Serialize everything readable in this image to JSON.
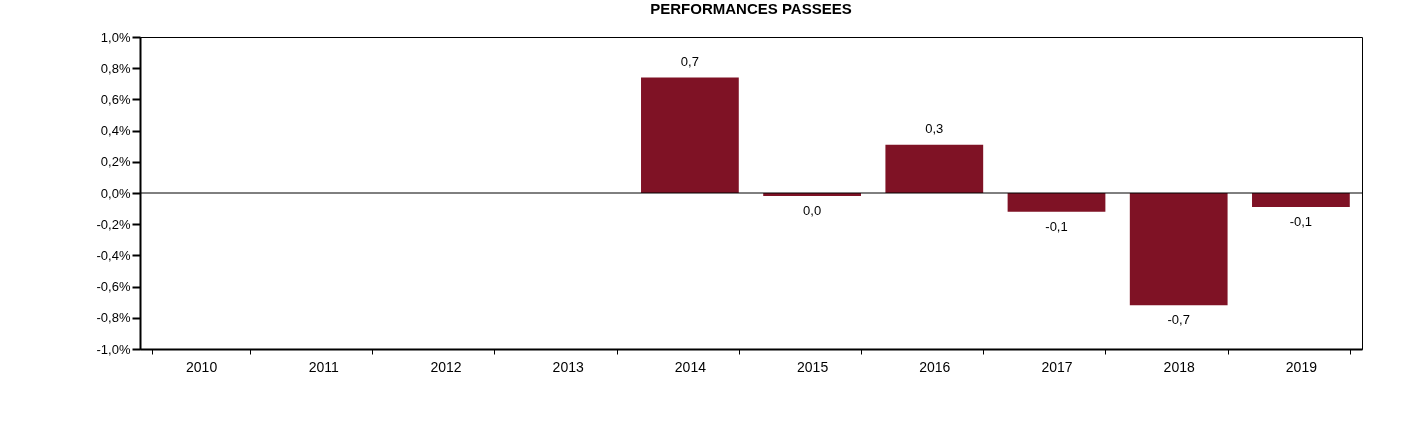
{
  "chart_data": {
    "type": "bar",
    "title": "PERFORMANCES PASSEES",
    "categories": [
      "2010",
      "2011",
      "2012",
      "2013",
      "2014",
      "2015",
      "2016",
      "2017",
      "2018",
      "2019"
    ],
    "values": [
      null,
      null,
      null,
      null,
      0.74,
      -0.02,
      0.31,
      -0.12,
      -0.72,
      -0.09
    ],
    "value_labels": [
      null,
      null,
      null,
      null,
      "0,7",
      "0,0",
      "0,3",
      "-0,1",
      "-0,7",
      "-0,1"
    ],
    "color": "#7f1225",
    "ylim": [
      -1,
      1
    ],
    "yticks": [
      {
        "value": -1,
        "label": "-1,0%"
      },
      {
        "value": -0.8,
        "label": "-0,8%"
      },
      {
        "value": -0.6,
        "label": "-0,6%"
      },
      {
        "value": -0.4,
        "label": "-0,4%"
      },
      {
        "value": -0.2,
        "label": "-0,2%"
      },
      {
        "value": 0,
        "label": "0,0%"
      },
      {
        "value": 0.2,
        "label": "0,2%"
      },
      {
        "value": 0.4,
        "label": "0,4%"
      },
      {
        "value": 0.6,
        "label": "0,6%"
      },
      {
        "value": 0.8,
        "label": "0,8%"
      },
      {
        "value": 1,
        "label": "1,0%"
      }
    ],
    "ref_lines": [
      {
        "axis": "y",
        "value": 0,
        "color": "#000000"
      }
    ],
    "grid": false
  }
}
